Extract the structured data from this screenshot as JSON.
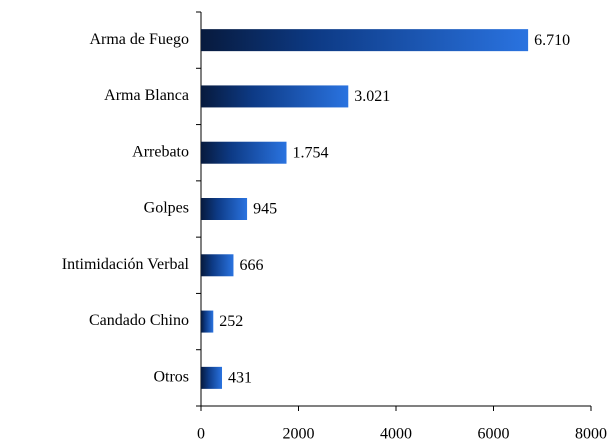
{
  "chart_data": {
    "type": "hbar",
    "categories": [
      "Arma de Fuego",
      "Arma Blanca",
      "Arrebato",
      "Golpes",
      "Intimidación Verbal",
      "Candado Chino",
      "Otros"
    ],
    "values": [
      6710,
      3021,
      1754,
      945,
      666,
      252,
      431
    ],
    "value_labels": [
      "6.710",
      "3.021",
      "1.754",
      "945",
      "666",
      "252",
      "431"
    ],
    "color": "#1a5fc8",
    "xlim": [
      0,
      8000
    ],
    "xticks": [
      0,
      2000,
      4000,
      6000,
      8000
    ],
    "grid": false
  }
}
